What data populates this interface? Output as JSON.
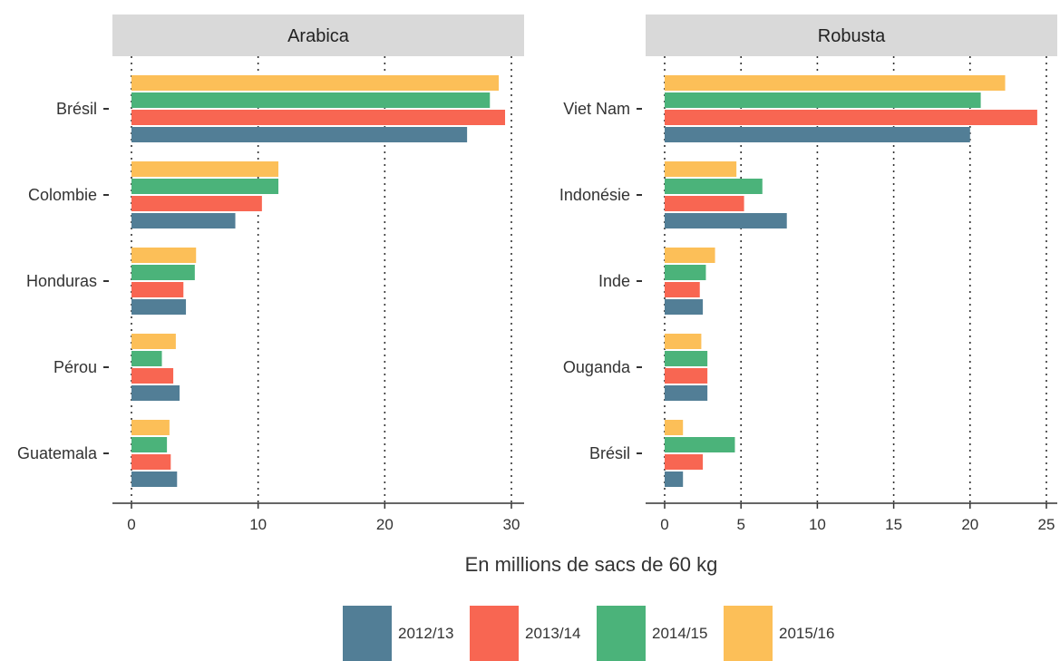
{
  "chart_data": {
    "type": "bar",
    "orientation": "horizontal",
    "xlabel": "En millions de sacs de 60 kg",
    "series_names": [
      "2012/13",
      "2013/14",
      "2014/15",
      "2015/16"
    ],
    "colors": [
      "#527e96",
      "#f86652",
      "#4bb37a",
      "#fcbf58"
    ],
    "grid": "vertical dotted",
    "legend_position": "bottom",
    "panels": [
      {
        "title": "Arabica",
        "categories": [
          "Brésil",
          "Colombie",
          "Honduras",
          "Pérou",
          "Guatemala"
        ],
        "xlim": [
          0,
          30
        ],
        "ticks": [
          0,
          10,
          20,
          30
        ],
        "series": [
          {
            "name": "2012/13",
            "values": [
              26.5,
              8.2,
              4.3,
              3.8,
              3.6
            ]
          },
          {
            "name": "2013/14",
            "values": [
              29.5,
              10.3,
              4.1,
              3.3,
              3.1
            ]
          },
          {
            "name": "2014/15",
            "values": [
              28.3,
              11.6,
              5.0,
              2.4,
              2.8
            ]
          },
          {
            "name": "2015/16",
            "values": [
              29.0,
              11.6,
              5.1,
              3.5,
              3.0
            ]
          }
        ]
      },
      {
        "title": "Robusta",
        "categories": [
          "Viet Nam",
          "Indonésie",
          "Inde",
          "Ouganda",
          "Brésil"
        ],
        "xlim": [
          0,
          25
        ],
        "ticks": [
          0,
          5,
          10,
          15,
          20,
          25
        ],
        "series": [
          {
            "name": "2012/13",
            "values": [
              20.0,
              8.0,
              2.5,
              2.8,
              1.2
            ]
          },
          {
            "name": "2013/14",
            "values": [
              24.4,
              5.2,
              2.3,
              2.8,
              2.5
            ]
          },
          {
            "name": "2014/15",
            "values": [
              20.7,
              6.4,
              2.7,
              2.8,
              4.6
            ]
          },
          {
            "name": "2015/16",
            "values": [
              22.3,
              4.7,
              3.3,
              2.4,
              1.2
            ]
          }
        ]
      }
    ]
  }
}
